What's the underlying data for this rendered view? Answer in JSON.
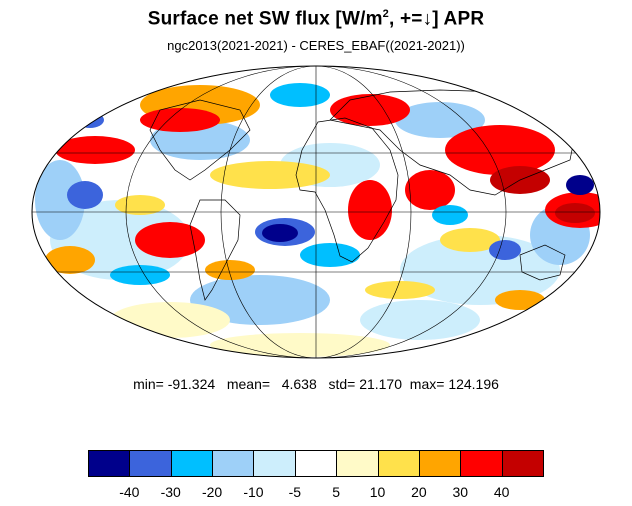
{
  "title": {
    "main": "Surface net SW flux [W/m",
    "sup": "2",
    "rest": ", +=↓]  APR"
  },
  "subtitle": "ngc2013(2021-2021) - CERES_EBAF((2021-2021))",
  "stats": {
    "min_label": "min=",
    "min": "-91.324",
    "mean_label": "mean=",
    "mean": "4.638",
    "std_label": "std=",
    "std": "21.170",
    "max_label": "max=",
    "max": "124.196"
  },
  "colorbar": {
    "colors": [
      "#00008b",
      "#3c64dc",
      "#00bfff",
      "#9ed0f8",
      "#cdeefc",
      "#ffffff",
      "#fffac8",
      "#ffe14b",
      "#ffa500",
      "#ff0000",
      "#c40000"
    ],
    "ticks": [
      "-40",
      "-30",
      "-20",
      "-10",
      "-5",
      "5",
      "10",
      "20",
      "30",
      "40"
    ]
  },
  "map": {
    "projection": "Mollweide",
    "ocean_default_color": "#ffffff"
  }
}
